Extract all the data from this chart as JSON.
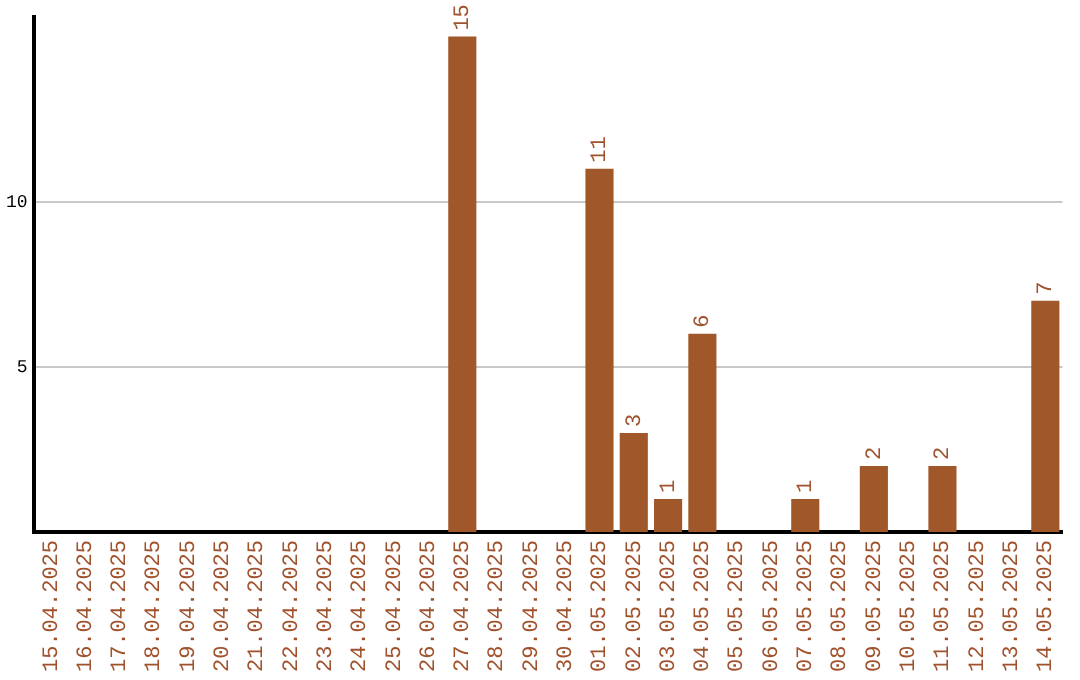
{
  "chart_data": {
    "type": "bar",
    "categories": [
      "15.04.2025",
      "16.04.2025",
      "17.04.2025",
      "18.04.2025",
      "19.04.2025",
      "20.04.2025",
      "21.04.2025",
      "22.04.2025",
      "23.04.2025",
      "24.04.2025",
      "25.04.2025",
      "26.04.2025",
      "27.04.2025",
      "28.04.2025",
      "29.04.2025",
      "30.04.2025",
      "01.05.2025",
      "02.05.2025",
      "03.05.2025",
      "04.05.2025",
      "05.05.2025",
      "06.05.2025",
      "07.05.2025",
      "08.05.2025",
      "09.05.2025",
      "10.05.2025",
      "11.05.2025",
      "12.05.2025",
      "13.05.2025",
      "14.05.2025"
    ],
    "values": [
      0,
      0,
      0,
      0,
      0,
      0,
      0,
      0,
      0,
      0,
      0,
      0,
      15,
      0,
      0,
      0,
      11,
      3,
      1,
      6,
      0,
      0,
      1,
      0,
      2,
      0,
      2,
      0,
      0,
      7
    ],
    "value_labels": [
      null,
      null,
      null,
      null,
      null,
      null,
      null,
      null,
      null,
      null,
      null,
      null,
      "15",
      null,
      null,
      null,
      "11",
      "3",
      "1",
      "6",
      null,
      null,
      "1",
      null,
      "2",
      null,
      "2",
      null,
      null,
      "7"
    ],
    "color": "#a0572a",
    "ylim": [
      0,
      15.6
    ],
    "yticks": [
      5,
      10
    ],
    "grid": "y",
    "legend": false
  }
}
